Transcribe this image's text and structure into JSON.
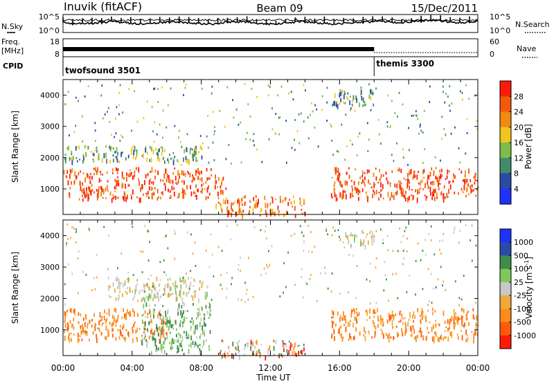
{
  "header": {
    "station": "Inuvik (fitACF)",
    "beam": "Beam 09",
    "date": "15/Dec/2011"
  },
  "noise_panel": {
    "left_label": "N.Sky",
    "right_label": "N.Search",
    "left_ticks": [
      "10^5",
      "10^0"
    ],
    "right_ticks": [
      "10^5",
      "10^0"
    ]
  },
  "freq_panel": {
    "left_label_line1": "Freq.",
    "left_label_line2": "[MHz]",
    "right_label": "Nave",
    "left_ticks": [
      "18",
      "8"
    ],
    "right_ticks": [
      "60",
      "0"
    ]
  },
  "cpid_panel": {
    "label": "CPID",
    "modes": [
      {
        "name": "twofsound 3501",
        "start_hour": 0
      },
      {
        "name": "themis 3300",
        "start_hour": 18
      }
    ]
  },
  "x_axis": {
    "title": "Time UT",
    "tick_labels": [
      "00:00",
      "04:00",
      "08:00",
      "12:00",
      "16:00",
      "20:00",
      "00:00"
    ]
  },
  "colors": {
    "power_scale": [
      "#1e32ff",
      "#2a4aa8",
      "#3f8c68",
      "#7dbb4a",
      "#f0c51e",
      "#f08a10",
      "#f25a0a",
      "#ff1a08"
    ],
    "velocity_scale": [
      "#ff1a08",
      "#ff5a0a",
      "#ff8c1a",
      "#f0a83a",
      "#c8c8c8",
      "#7ec85a",
      "#3f8c4a",
      "#2a4aa8",
      "#1e32ff"
    ],
    "velocity_dominant": [
      "#ff8c1a",
      "#f0a83a",
      "#3f8c4a",
      "#c8c8c8",
      "#7ec85a",
      "#2a4aa8"
    ],
    "velocity_minor": [
      "#ff5a0a",
      "#ff1a08"
    ]
  },
  "chart_data": [
    {
      "type": "heatmap",
      "name": "power",
      "xlabel": "Time UT",
      "ylabel": "Slant Range [km]",
      "xlim": [
        0,
        24
      ],
      "ylim": [
        180,
        4500
      ],
      "y_ticks": [
        1000,
        2000,
        3000,
        4000
      ],
      "colorbar": {
        "label": "Power [dB]",
        "range": [
          0,
          30
        ],
        "tick_labels": [
          "28",
          "24",
          "20",
          "16",
          "12",
          "8",
          "4"
        ]
      },
      "regions": [
        {
          "t0": 0.0,
          "t1": 8.8,
          "r0": 700,
          "r1": 1700,
          "level": "high"
        },
        {
          "t0": 8.8,
          "t1": 9.5,
          "r0": 300,
          "r1": 1400,
          "level": "medium"
        },
        {
          "t0": 9.5,
          "t1": 14.0,
          "r0": 180,
          "r1": 800,
          "level": "medium"
        },
        {
          "t0": 15.5,
          "t1": 24.0,
          "r0": 700,
          "r1": 1700,
          "level": "high"
        },
        {
          "t0": 0.0,
          "t1": 8.0,
          "r0": 1900,
          "r1": 2400,
          "level": "low"
        },
        {
          "t0": 15.5,
          "t1": 18.0,
          "r0": 3700,
          "r1": 4200,
          "level": "low"
        }
      ]
    },
    {
      "type": "heatmap",
      "name": "velocity",
      "xlabel": "Time UT",
      "ylabel": "Slant Range [km]",
      "xlim": [
        0,
        24
      ],
      "ylim": [
        180,
        4500
      ],
      "y_ticks": [
        1000,
        2000,
        3000,
        4000
      ],
      "colorbar": {
        "label": "Velocity [m s^-1]",
        "range": [
          -1000,
          1000
        ],
        "tick_labels": [
          "1000",
          "500",
          "100",
          "25",
          "-25",
          "-100",
          "-500",
          "-1000"
        ]
      },
      "regions": [
        {
          "t0": 0.0,
          "t1": 6.0,
          "r0": 700,
          "r1": 1700,
          "level": "toward"
        },
        {
          "t0": 4.5,
          "t1": 8.5,
          "r0": 300,
          "r1": 1900,
          "level": "away"
        },
        {
          "t0": 2.5,
          "t1": 8.5,
          "r0": 2000,
          "r1": 2700,
          "level": "near-zero"
        },
        {
          "t0": 9.0,
          "t1": 14.0,
          "r0": 180,
          "r1": 700,
          "level": "mixed"
        },
        {
          "t0": 15.5,
          "t1": 24.0,
          "r0": 700,
          "r1": 1700,
          "level": "toward"
        },
        {
          "t0": 16.0,
          "t1": 18.0,
          "r0": 3700,
          "r1": 4200,
          "level": "near-zero"
        }
      ]
    }
  ]
}
